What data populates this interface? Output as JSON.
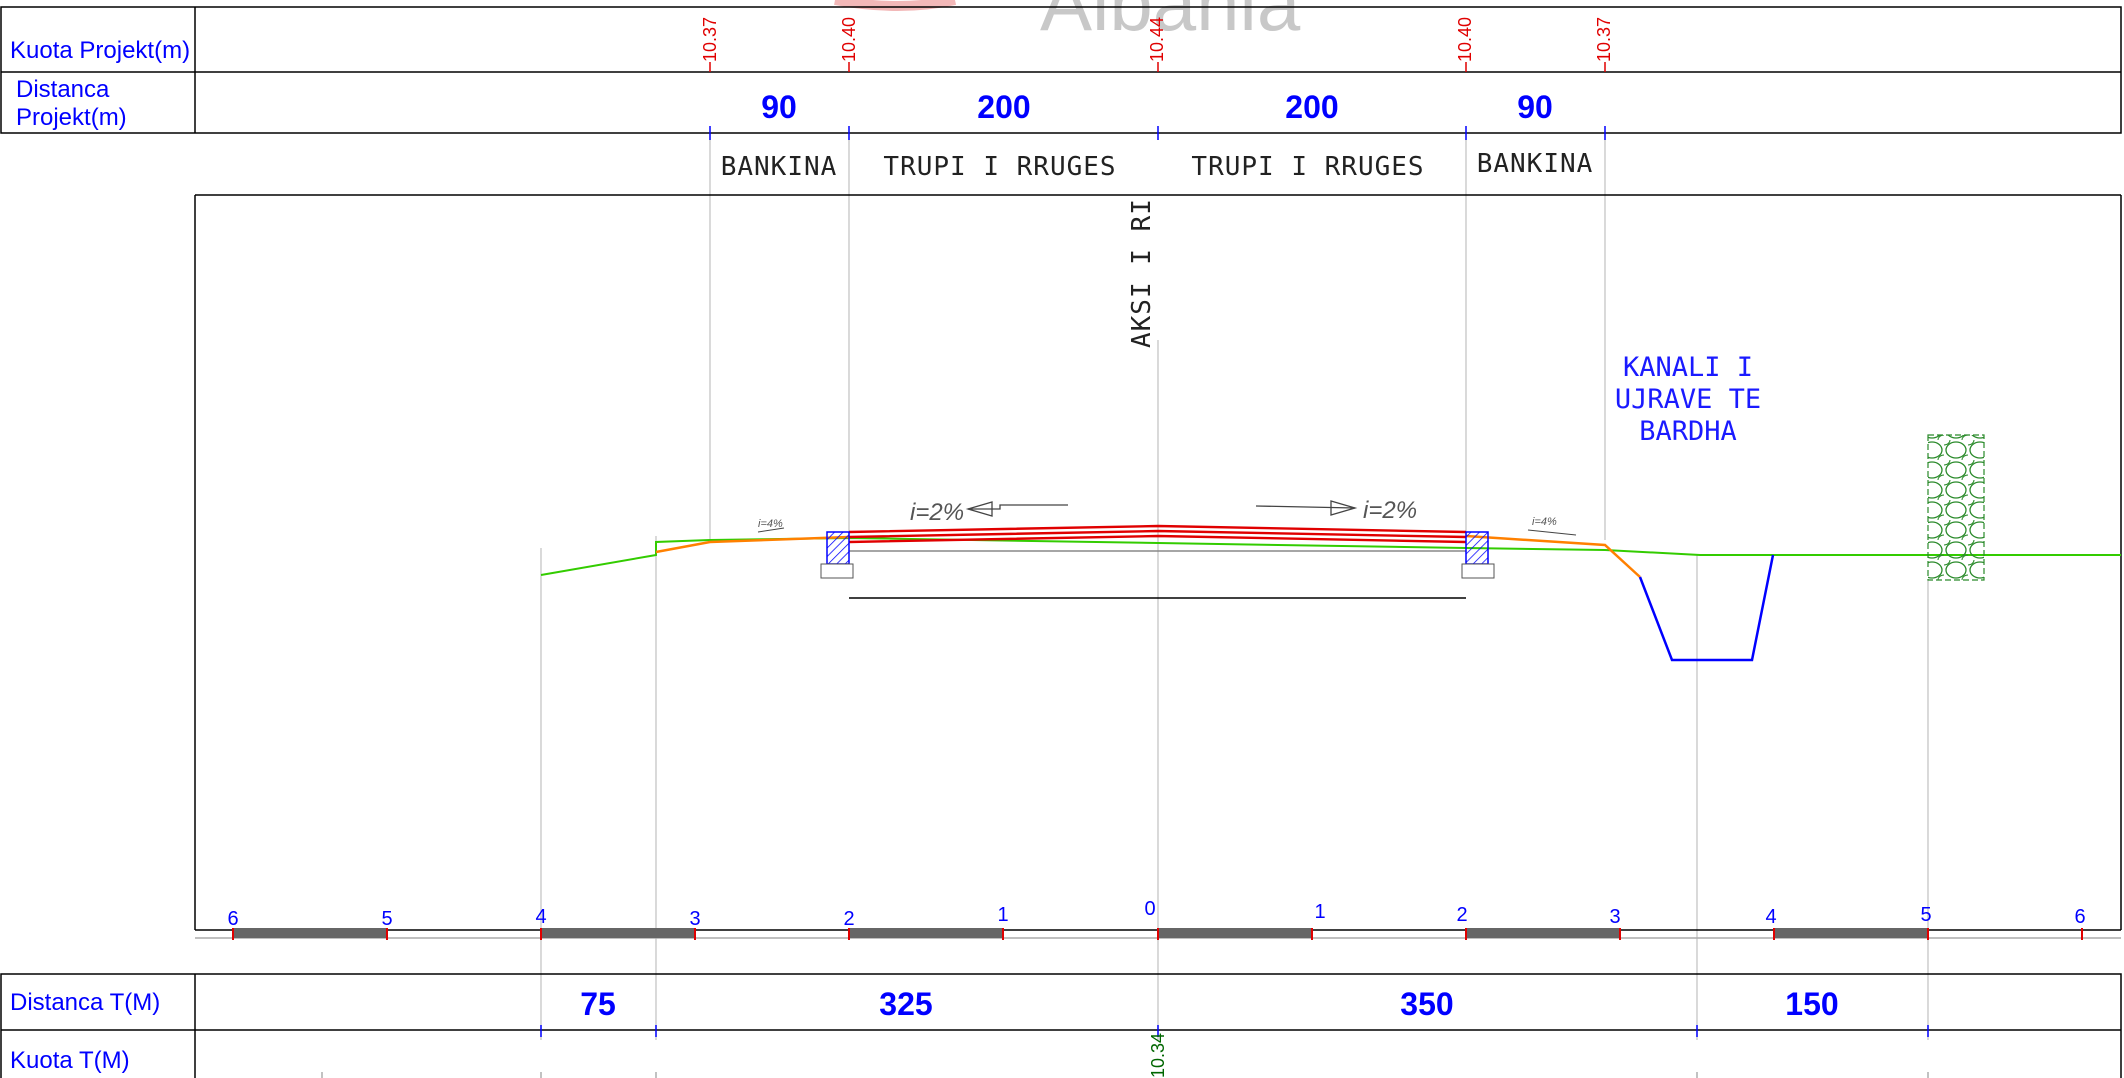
{
  "watermark": "Albania",
  "rows": {
    "kuota_projekt_label": "Kuota Projekt(m)",
    "distanca_projekt_label_1": "Distanca",
    "distanca_projekt_label_2": "Projekt(m)",
    "distanca_t_label": "Distanca T(M)",
    "kuota_t_label": "Kuota T(M)"
  },
  "project_elevations": [
    "10.37",
    "10.40",
    "10.44",
    "10.40",
    "10.37"
  ],
  "project_distances": [
    "90",
    "200",
    "200",
    "90"
  ],
  "segment_names": [
    "BANKINA",
    "TRUPI I RRUGES",
    "TRUPI I RRUGES",
    "BANKINA"
  ],
  "axis_label": "AKSI I RI",
  "canal_label": [
    "KANALI I",
    "UJRAVE TE",
    "BARDHA"
  ],
  "slopes": {
    "road_left": "i=2%",
    "road_right": "i=2%",
    "shoulder_left": "i=4%",
    "shoulder_right": "i=4%"
  },
  "scale_labels": [
    "6",
    "5",
    "4",
    "3",
    "2",
    "1",
    "0",
    "1",
    "2",
    "3",
    "4",
    "5",
    "6"
  ],
  "terrain_distances": [
    "75",
    "325",
    "350",
    "150"
  ],
  "terrain_elevations": [
    "10.34"
  ],
  "colors": {
    "label_blue": "#0000ff",
    "elevation_red": "#e00000",
    "pavement_red": "#e00000",
    "shoulder_orange": "#ff8000",
    "terrain_green": "#33cc00",
    "canal_blue": "#0000ff",
    "elevation_green": "#006600"
  }
}
